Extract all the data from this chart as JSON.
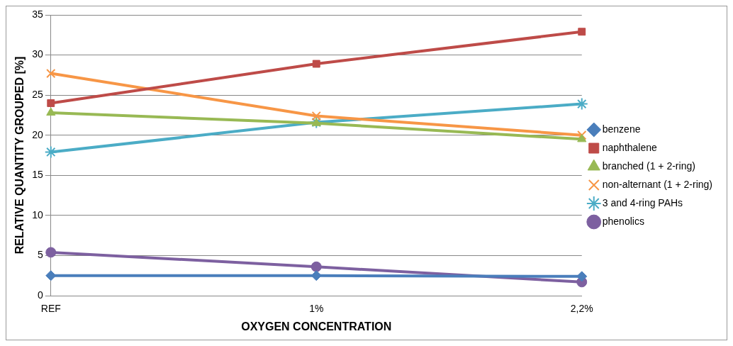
{
  "chart_data": {
    "type": "line",
    "xlabel": "OXYGEN CONCENTRATION",
    "ylabel": "RELATIVE QUANTITY GROUPED [%]",
    "categories": [
      "REF",
      "1%",
      "2,2%"
    ],
    "ylim": [
      0,
      35
    ],
    "yticks": [
      0,
      5,
      10,
      15,
      20,
      25,
      30,
      35
    ],
    "grid": "y",
    "legend": "right",
    "line_style": "solid",
    "series": [
      {
        "name": "benzene",
        "color": "#4a7ebb",
        "marker": "diamond",
        "values": [
          2.5,
          2.5,
          2.4
        ]
      },
      {
        "name": "naphthalene",
        "color": "#be4b48",
        "marker": "square",
        "values": [
          24.0,
          28.9,
          32.9
        ]
      },
      {
        "name": "branched (1 + 2-ring)",
        "color": "#98b954",
        "marker": "triangle",
        "values": [
          22.8,
          21.5,
          19.5
        ]
      },
      {
        "name": "non-alternant (1 + 2-ring)",
        "color": "#f79646",
        "marker": "cross",
        "values": [
          27.7,
          22.4,
          20.0
        ]
      },
      {
        "name": "3 and 4-ring PAHs",
        "color": "#4bacc6",
        "marker": "cross",
        "values": [
          17.9,
          21.6,
          23.9
        ]
      },
      {
        "name": "phenolics",
        "color": "#7d60a0",
        "marker": "circle",
        "values": [
          5.4,
          3.6,
          1.7
        ]
      }
    ]
  }
}
